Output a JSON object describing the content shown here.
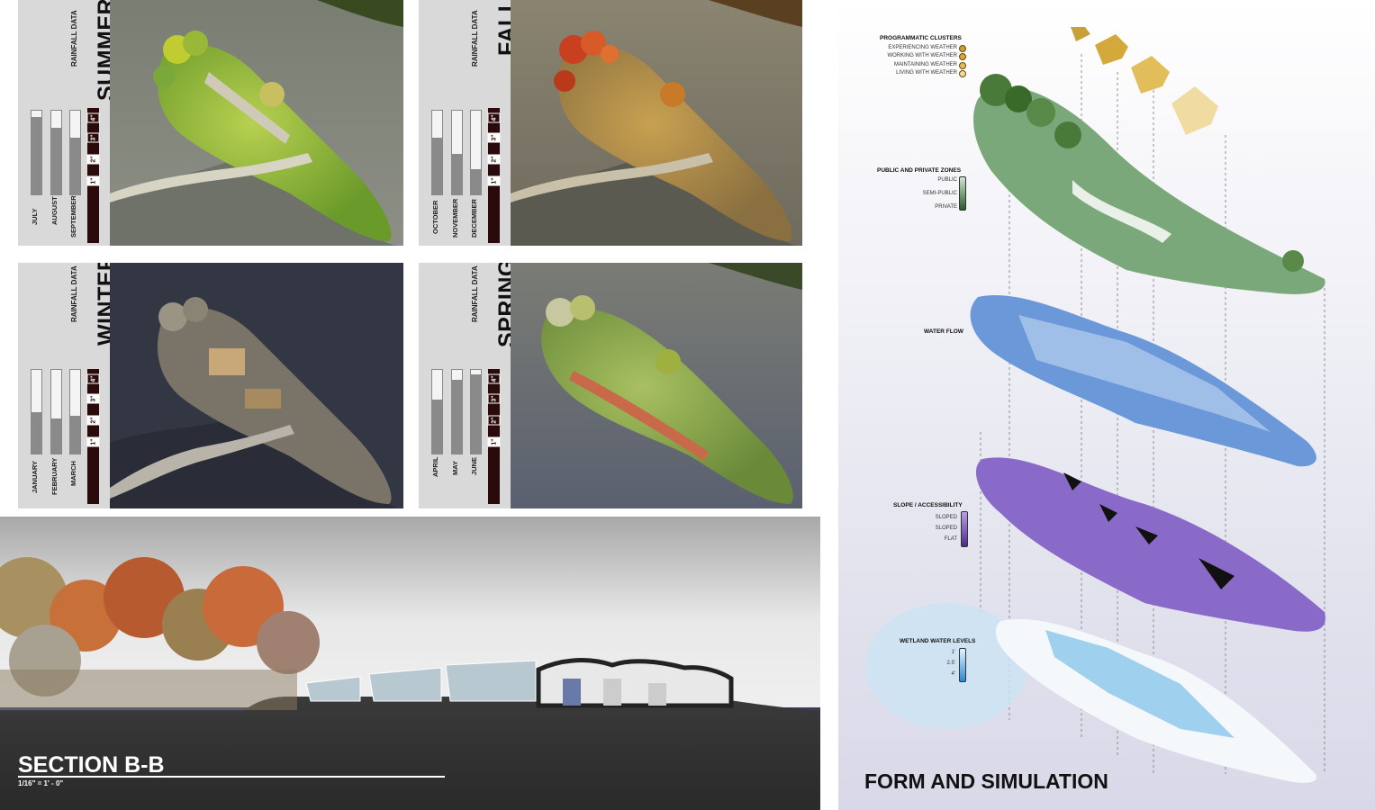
{
  "seasons": [
    {
      "title": "SUMMER",
      "rain_label": "RAINFALL DATA",
      "months": [
        "JULY",
        "AUGUST",
        "SEPTEMBER"
      ],
      "fills": [
        0.92,
        0.8,
        0.68
      ],
      "scale": [
        "1\"",
        "2\"",
        "3\"",
        "4\""
      ],
      "filled_scale": 2
    },
    {
      "title": "FALL",
      "rain_label": "RAINFALL DATA",
      "months": [
        "OCTOBER",
        "NOVEMBER",
        "DECEMBER"
      ],
      "fills": [
        0.68,
        0.48,
        0.3
      ],
      "scale": [
        "1\"",
        "2\"",
        "3\"",
        "4\""
      ],
      "filled_scale": 3
    },
    {
      "title": "WINTER",
      "rain_label": "RAINFALL DATA",
      "months": [
        "JANUARY",
        "FEBRUARY",
        "MARCH"
      ],
      "fills": [
        0.5,
        0.42,
        0.45
      ],
      "scale": [
        "1\"",
        "2\"",
        "3\"",
        "4\""
      ],
      "filled_scale": 3
    },
    {
      "title": "SPRING",
      "rain_label": "RAINFALL DATA",
      "months": [
        "APRIL",
        "MAY",
        "JUNE"
      ],
      "fills": [
        0.65,
        0.88,
        0.95
      ],
      "scale": [
        "1\"",
        "2\"",
        "3\"",
        "4\""
      ],
      "filled_scale": 1
    }
  ],
  "section": {
    "title": "SECTION B-B",
    "scale": "1/16\" = 1' - 0\""
  },
  "form": {
    "title": "FORM AND SIMULATION",
    "programmatic": {
      "title": "PROGRAMMATIC CLUSTERS",
      "items": [
        "EXPERIENCING WEATHER",
        "WORKING WITH WEATHER",
        "MAINTAINING WEATHER",
        "LIVING WITH WEATHER"
      ]
    },
    "zones": {
      "title": "PUBLIC AND PRIVATE ZONES",
      "items": [
        "PUBLIC",
        "SEMI-PUBLIC",
        "PRIVATE"
      ]
    },
    "water_flow": {
      "title": "WATER FLOW"
    },
    "slope": {
      "title": "SLOPE / ACCESSIBILITY",
      "items": [
        "SLOPED",
        "SLOPED",
        "FLAT"
      ]
    },
    "wetland": {
      "title": "WETLAND WATER LEVELS",
      "items": [
        "1'",
        "2.5'",
        "4'"
      ]
    }
  },
  "colors": {
    "summer": "#7aa83a",
    "fall": "#c8662a",
    "winter": "#3d4050",
    "spring": "#8fb04a",
    "cluster1": "#c8a038",
    "cluster2": "#d4a83a",
    "cluster3": "#e2be5a",
    "cluster4": "#f0dca0",
    "green": "#6a9a6a",
    "blue": "#5a8ad0",
    "purple": "#8a6ac8",
    "water": "#7ac0e8"
  }
}
